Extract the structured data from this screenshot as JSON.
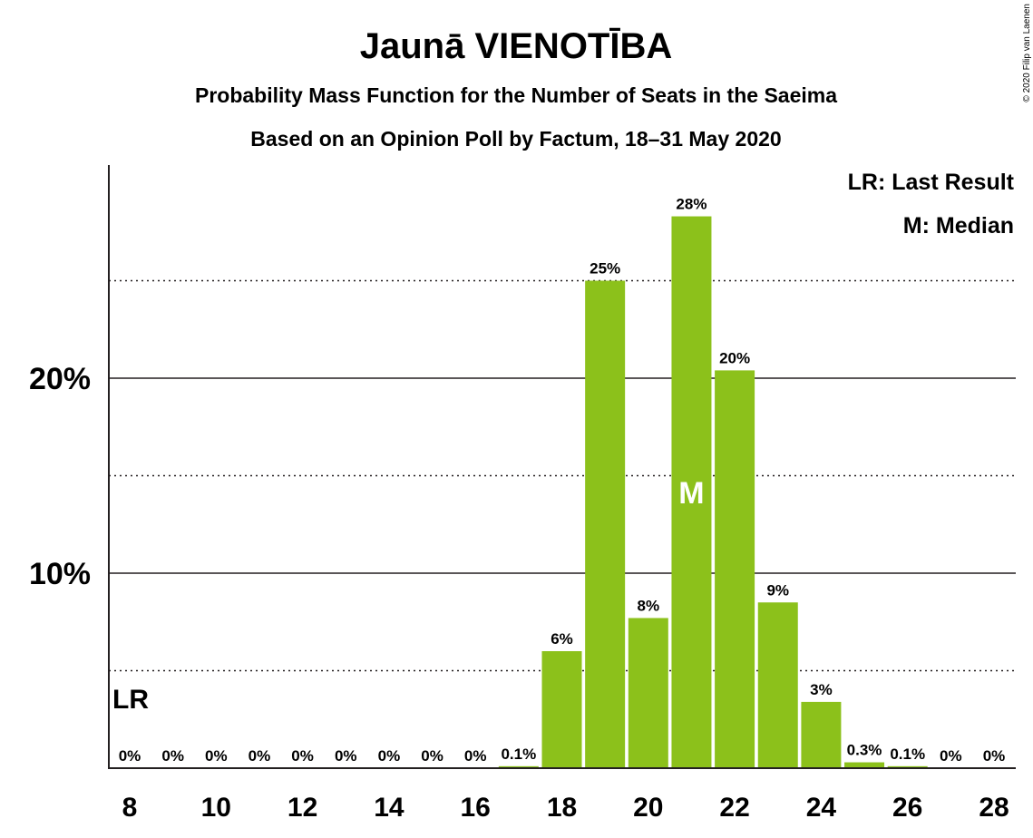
{
  "title": "Jaunā VIENOTĪBA",
  "subtitle1": "Probability Mass Function for the Number of Seats in the Saeima",
  "subtitle2": "Based on an Opinion Poll by Factum, 18–31 May 2020",
  "copyright": "© 2020 Filip van Laenen",
  "legend": {
    "lr": "LR: Last Result",
    "m": "M: Median"
  },
  "markers": {
    "lr_label": "LR",
    "median_label": "M"
  },
  "colors": {
    "bar": "#8cc11b",
    "axis": "#231f20"
  },
  "chart_data": {
    "type": "bar",
    "x": [
      8,
      9,
      10,
      11,
      12,
      13,
      14,
      15,
      16,
      17,
      18,
      19,
      20,
      21,
      22,
      23,
      24,
      25,
      26,
      27,
      28
    ],
    "values": [
      0,
      0,
      0,
      0,
      0,
      0,
      0,
      0,
      0,
      0.1,
      6.0,
      25.0,
      7.7,
      28.3,
      20.4,
      8.5,
      3.4,
      0.3,
      0.1,
      0,
      0
    ],
    "labels": [
      "0%",
      "0%",
      "0%",
      "0%",
      "0%",
      "0%",
      "0%",
      "0%",
      "0%",
      "0.1%",
      "6%",
      "25%",
      "8%",
      "28%",
      "20%",
      "9%",
      "3%",
      "0.3%",
      "0.1%",
      "0%",
      "0%"
    ],
    "xticks": [
      "8",
      "10",
      "12",
      "14",
      "16",
      "18",
      "20",
      "22",
      "24",
      "26",
      "28"
    ],
    "yticks": [
      "10%",
      "20%"
    ],
    "ylim": [
      0,
      31
    ],
    "last_result": 8,
    "median": 21,
    "grid": true
  }
}
